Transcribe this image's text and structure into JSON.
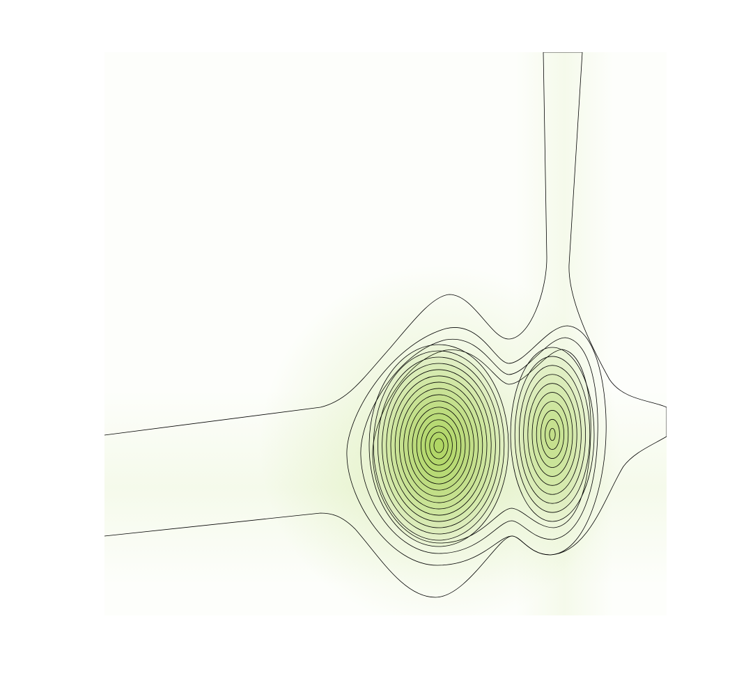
{
  "chart_data": {
    "type": "contour",
    "color": "#9acd32"
  }
}
